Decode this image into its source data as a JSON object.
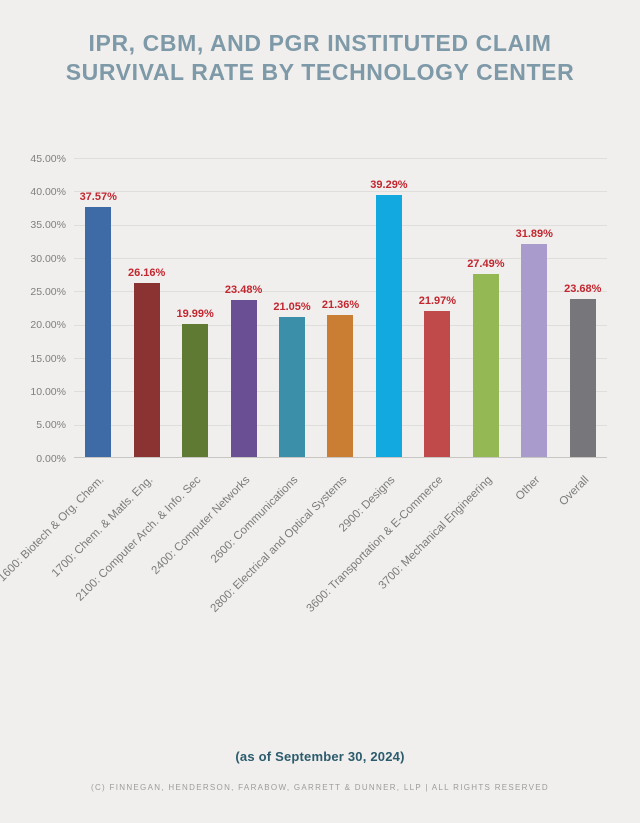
{
  "header": {
    "title_line1": "IPR, CBM, AND PGR INSTITUTED CLAIM",
    "title_line2": "SURVIVAL RATE BY TECHNOLOGY CENTER"
  },
  "chart_data": {
    "type": "bar",
    "title": "IPR, CBM, and PGR Instituted Claim Survival Rate by Technology Center",
    "categories": [
      "1600: Biotech & Org. Chem.",
      "1700: Chem. & Matls. Eng.",
      "2100: Computer Arch. & Info. Sec",
      "2400: Computer Networks",
      "2600: Communications",
      "2800: Electrical and Optical Systems",
      "2900: Designs",
      "3600: Transportation & E-Commerce",
      "3700: Mechanical Engineering",
      "Other",
      "Overall"
    ],
    "values": [
      37.57,
      26.16,
      19.99,
      23.48,
      21.05,
      21.36,
      39.29,
      21.97,
      27.49,
      31.89,
      23.68
    ],
    "value_labels": [
      "37.57%",
      "26.16%",
      "19.99%",
      "23.48%",
      "21.05%",
      "21.36%",
      "39.29%",
      "21.97%",
      "27.49%",
      "31.89%",
      "23.68%"
    ],
    "bar_colors": [
      "#3e6ba6",
      "#8b3232",
      "#5f7a33",
      "#6a4f94",
      "#3b8fa9",
      "#ca7e33",
      "#12a9e0",
      "#c04a4a",
      "#94b954",
      "#a99bcb",
      "#77767a"
    ],
    "value_label_color": "#c2262f",
    "yticks": [
      "0.00%",
      "5.00%",
      "10.00%",
      "15.00%",
      "20.00%",
      "25.00%",
      "30.00%",
      "35.00%",
      "40.00%",
      "45.00%"
    ],
    "ylim": [
      0,
      45
    ],
    "ytick_step": 5,
    "grid": true,
    "legend": "none",
    "xlabel": "",
    "ylabel": ""
  },
  "footer": {
    "as_of": "(as of September 30, 2024)",
    "copyright": "(C) FINNEGAN, HENDERSON, FARABOW, GARRETT & DUNNER, LLP | ALL RIGHTS RESERVED"
  }
}
